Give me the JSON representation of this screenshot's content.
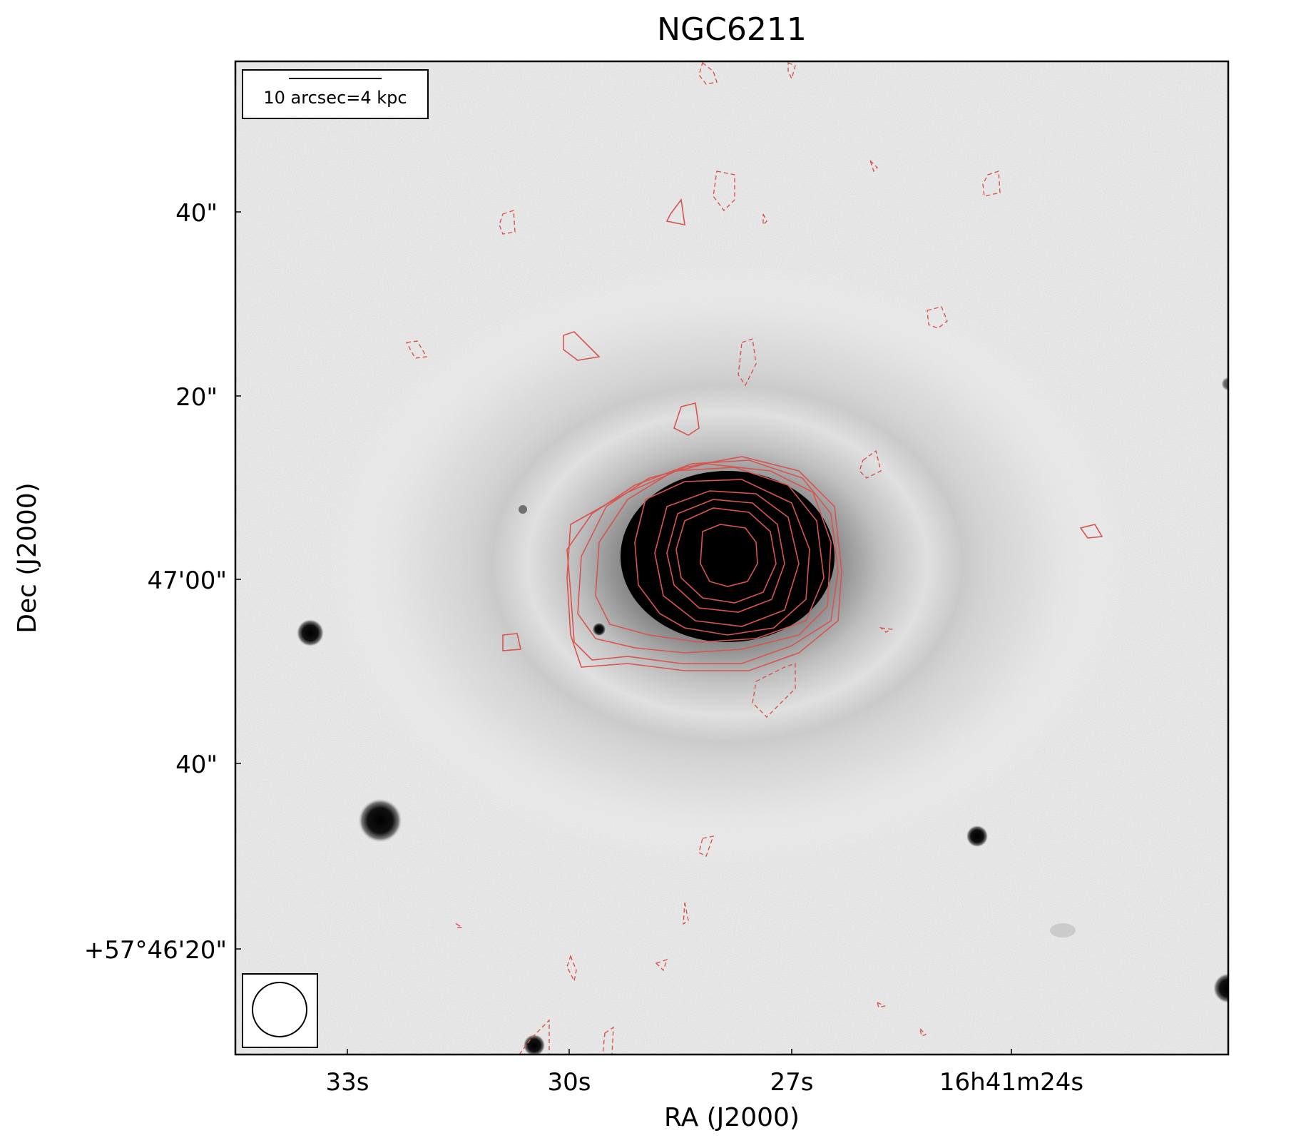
{
  "title": "NGC6211",
  "axes": {
    "xlabel": "RA (J2000)",
    "ylabel": "Dec (J2000)",
    "xticks": [
      "33s",
      "30s",
      "27s",
      "16h41m24s"
    ],
    "yticks": [
      "40\"",
      "20\"",
      "47'00\"",
      "40\"",
      "+57°46'20\""
    ]
  },
  "scalebar": {
    "label": "10 arcsec=4 kpc"
  },
  "contour_color": "#d9534f",
  "image": {
    "description_icons": [
      "galaxy-core",
      "star",
      "beam-ellipse-icon"
    ]
  }
}
